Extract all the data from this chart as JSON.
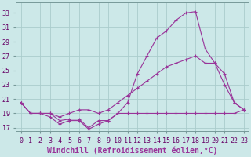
{
  "xlabel": "Windchill (Refroidissement éolien,°C)",
  "x": [
    0,
    1,
    2,
    3,
    4,
    5,
    6,
    7,
    8,
    9,
    10,
    11,
    12,
    13,
    14,
    15,
    16,
    17,
    18,
    19,
    20,
    21,
    22,
    23
  ],
  "line1": [
    20.5,
    19.0,
    19.0,
    19.0,
    18.0,
    18.2,
    18.2,
    17.0,
    18.0,
    18.0,
    19.0,
    20.5,
    24.5,
    27.0,
    29.5,
    30.5,
    32.0,
    33.0,
    33.2,
    28.0,
    26.0,
    23.0,
    20.5,
    19.5
  ],
  "line2": [
    20.5,
    19.0,
    19.0,
    18.5,
    17.5,
    18.0,
    18.0,
    16.8,
    17.5,
    18.0,
    19.0,
    19.0,
    19.0,
    19.0,
    19.0,
    19.0,
    19.0,
    19.0,
    19.0,
    19.0,
    19.0,
    19.0,
    19.0,
    19.5
  ],
  "line3": [
    20.5,
    19.0,
    19.0,
    19.0,
    18.5,
    19.0,
    19.5,
    19.5,
    19.0,
    19.5,
    20.5,
    21.5,
    22.5,
    23.5,
    24.5,
    25.5,
    26.0,
    26.5,
    27.0,
    26.0,
    26.0,
    24.5,
    20.5,
    19.5
  ],
  "color": "#993399",
  "bg_color": "#cce8e8",
  "grid_color": "#aacccc",
  "ylim": [
    16.5,
    34.5
  ],
  "ytick_vals": [
    17,
    19,
    21,
    23,
    25,
    27,
    29,
    31,
    33
  ],
  "xlim": [
    -0.5,
    23.5
  ],
  "tick_fontsize": 6,
  "label_fontsize": 7
}
